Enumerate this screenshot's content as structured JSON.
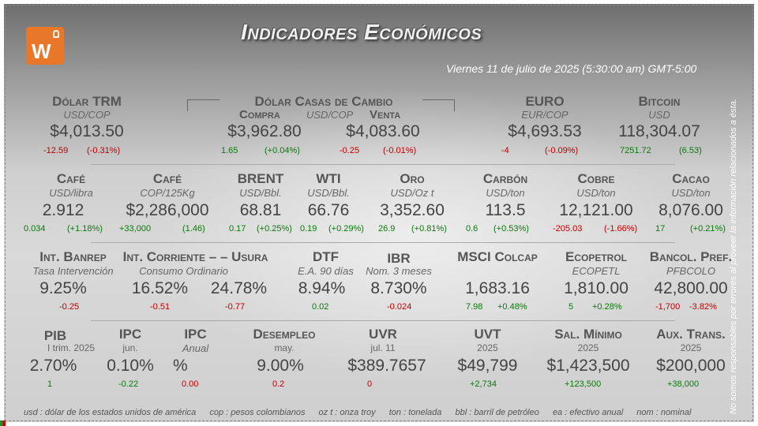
{
  "header": {
    "title": "Indicadores Económicos",
    "date": "Viernes 11 de julio de 2025 (5:30:00 am) GMT-5:00"
  },
  "row1": {
    "trm": {
      "label": "Dólar TRM",
      "sub": "USD/COP",
      "value": "$4,013.50",
      "chg": "-12.59",
      "pct": "(-0.31%)"
    },
    "casas": {
      "label": "Dólar Casas de Cambio",
      "compra": "Compra",
      "pair": "USD/COP",
      "venta": "Venta",
      "compra_value": "$3,962.80",
      "compra_chg": "1.65",
      "compra_pct": "(+0.04%)",
      "venta_value": "$4,083.60",
      "venta_chg": "-0.25",
      "venta_pct": "(-0.01%)"
    },
    "euro": {
      "label": "EURO",
      "sub": "EUR/COP",
      "value": "$4,693.53",
      "chg": "-4",
      "pct": "(-0.09%)"
    },
    "bitcoin": {
      "label": "Bitcoin",
      "sub": "USD",
      "value": "118,304.07",
      "chg": "7251.72",
      "pct": "(6.53)"
    }
  },
  "row2": [
    {
      "label": "Café",
      "sub": "USD/libra",
      "value": "2.912",
      "chg": "0.034",
      "pct": "(+1.18%)"
    },
    {
      "label": "Café",
      "sub": "COP/125Kg",
      "value": "$2,286,000",
      "chg": "+33,000",
      "pct": "(1.46)"
    },
    {
      "label": "BRENT",
      "sub": "USD/Bbl.",
      "value": "68.81",
      "chg": "0.17",
      "pct": "(+0.25%)"
    },
    {
      "label": "WTI",
      "sub": "USD/Bbl.",
      "value": "66.76",
      "chg": "0.19",
      "pct": "(+0.29%)"
    },
    {
      "label": "Oro",
      "sub": "USD/Oz t",
      "value": "3,352.60",
      "chg": "26.9",
      "pct": "(+0.81%)"
    },
    {
      "label": "Carbón",
      "sub": "USD/ton",
      "value": "113.5",
      "chg": "0.6",
      "pct": "(+0.53%)"
    },
    {
      "label": "Cobre",
      "sub": "USD/ton",
      "value": "12,121.00",
      "chg": "-205.03",
      "pct": "(-1.66%)"
    },
    {
      "label": "Cacao",
      "sub": "USD/ton",
      "value": "8,076.00",
      "chg": "17",
      "pct": "(+0.21%)"
    }
  ],
  "row3": {
    "banrep": {
      "label": "Int. Banrep",
      "sub": "Tasa Intervención",
      "value": "9.25%",
      "chg": "-0.25"
    },
    "corriente": {
      "label": "Int. Corriente – – Usura",
      "sub": "Consumo Ordinario",
      "value1": "16.52%",
      "chg1": "-0.51",
      "value2": "24.78%",
      "chg2": "-0.77"
    },
    "dtf": {
      "label": "DTF",
      "sub": "E.A. 90 días",
      "value": "8.94%",
      "chg": "0.02"
    },
    "ibr": {
      "label": "IBR",
      "sub": "Nom. 3 meses",
      "value": "8.730%",
      "chg": "-0.024"
    },
    "msci": {
      "label": "MSCI Colcap",
      "value": "1,683.16",
      "chg": "7.98",
      "pct": "+0.48%"
    },
    "ecopetrol": {
      "label": "Ecopetrol",
      "sub": "ECOPETL",
      "value": "1,810.00",
      "chg": "5",
      "pct": "+0.28%"
    },
    "bancol": {
      "label": "Bancol. Pref.",
      "sub": "PFBCOLO",
      "value": "42,800.00",
      "chg": "-1,700",
      "pct": "-3.82%"
    }
  },
  "row4": {
    "pib": {
      "label": "PIB",
      "sub": "I trim. 2025",
      "value": "2.70%",
      "chg": "1"
    },
    "ipc1": {
      "label": "IPC",
      "sub": "jun.",
      "value": "0.10%",
      "chg": "-0.22"
    },
    "ipc2": {
      "label": "IPC",
      "sub": "Anual",
      "value": "%",
      "chg": "0.00"
    },
    "desempleo": {
      "label": "Desempleo",
      "sub": "may.",
      "value": "9.00%",
      "chg": "0.2"
    },
    "uvr": {
      "label": "UVR",
      "sub": "jul. 11",
      "value": "$389.7657",
      "chg": "0"
    },
    "uvt": {
      "label": "UVT",
      "sub": "2025",
      "value": "$49,799",
      "chg": "+2,734"
    },
    "salario": {
      "label": "Sal. Mínimo",
      "sub": "2025",
      "value": "$1,423,500",
      "chg": "+123,500"
    },
    "aux": {
      "label": "Aux. Trans.",
      "sub": "2025",
      "value": "$200,000",
      "chg": "+38,000"
    }
  },
  "footer": {
    "notes": [
      "usd : dólar de los estados unidos de américa",
      "cop : pesos colombianos",
      "oz t : onza troy",
      "ton : tonelada",
      "bbl : barril de petróleo",
      "ea : efectivo anual",
      "nom : nominal"
    ],
    "disclaimer": "No somos responsables por errores al proveer la información relacionados a ésta."
  },
  "colors": {
    "accent": "#e8772a",
    "negative": "#c00000",
    "positive": "#0a7a0a"
  }
}
